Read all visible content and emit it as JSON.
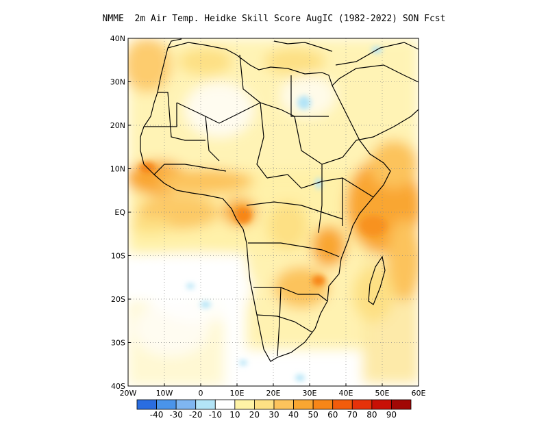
{
  "title": "NMME  2m Air Temp. Heidke Skill Score AugIC (1982-2022) SON Fcst",
  "map": {
    "region": "Africa",
    "lon_range": [
      -20,
      60
    ],
    "lat_range": [
      -40,
      40
    ],
    "lat_labels": [
      "40N",
      "30N",
      "20N",
      "10N",
      "EQ",
      "10S",
      "20S",
      "30S",
      "40S"
    ],
    "lon_labels": [
      "20W",
      "10W",
      "0",
      "10E",
      "20E",
      "30E",
      "40E",
      "50E",
      "60E"
    ],
    "grid": "dotted"
  },
  "colorbar": {
    "colors": [
      "#2a6de0",
      "#4a94ea",
      "#7fb6f1",
      "#b3e4f7",
      "#ffffff",
      "#fff3a6",
      "#fde084",
      "#fcc35c",
      "#f9a631",
      "#f78617",
      "#f25c0b",
      "#e6320a",
      "#c81006",
      "#a10805"
    ],
    "labels": [
      "-40",
      "-30",
      "-20",
      "-10",
      "10",
      "20",
      "30",
      "40",
      "50",
      "60",
      "70",
      "80",
      "90"
    ]
  }
}
